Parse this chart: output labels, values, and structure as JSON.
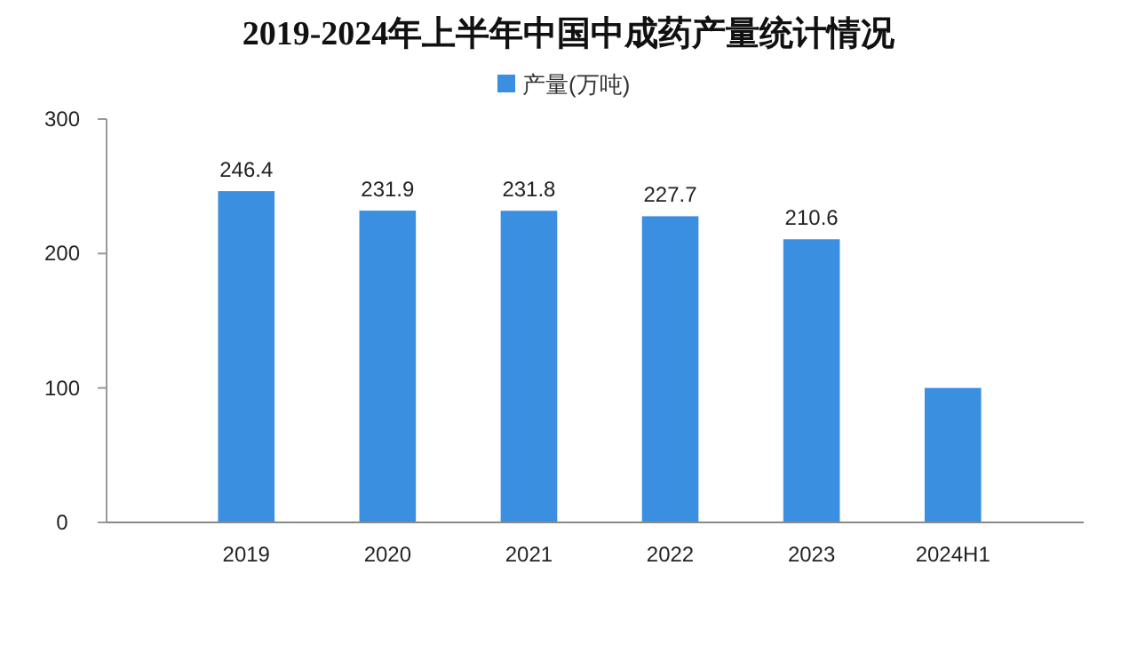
{
  "chart_data": {
    "type": "bar",
    "title": "2019-2024年上半年中国中成药产量统计情况",
    "categories": [
      "2019",
      "2020",
      "2021",
      "2022",
      "2023",
      "2024H1"
    ],
    "series": [
      {
        "name": "产量(万吨)",
        "color": "#3b8fe0",
        "values": [
          246.4,
          231.9,
          231.8,
          227.7,
          210.6,
          100
        ],
        "value_labels": [
          "246.4",
          "231.9",
          "231.8",
          "227.7",
          "210.6",
          null
        ]
      }
    ],
    "ylim": [
      0,
      300
    ],
    "yticks": [
      0,
      100,
      200,
      300
    ],
    "grid": false,
    "legend": "top"
  }
}
